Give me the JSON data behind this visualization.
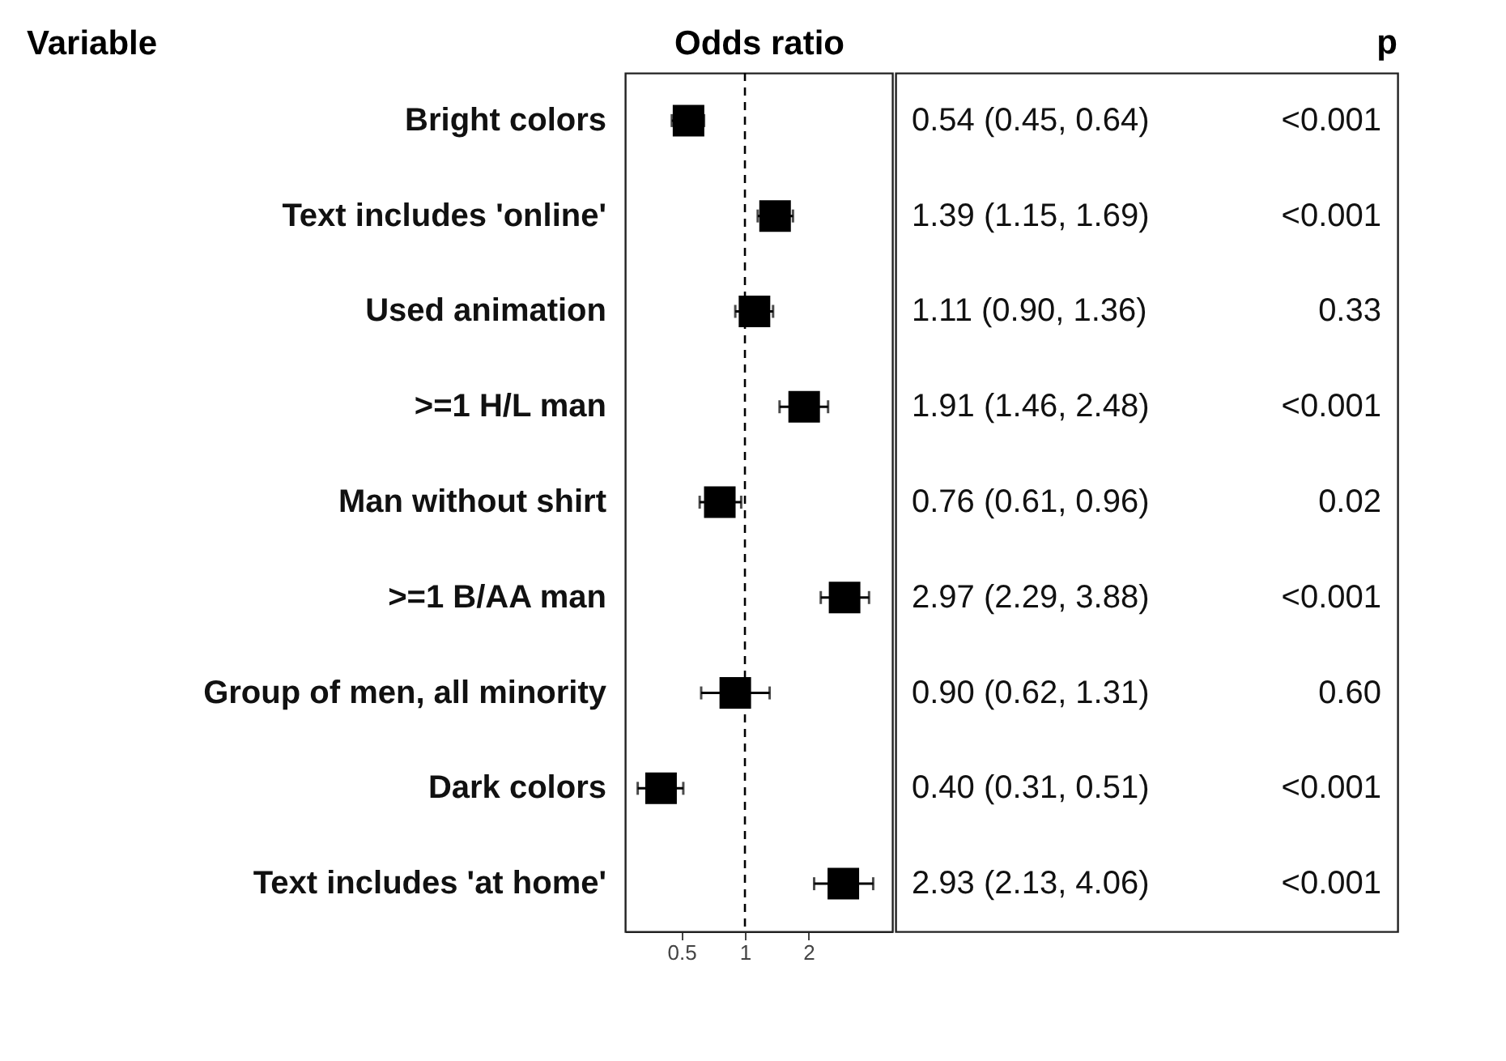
{
  "chart_data": {
    "type": "scatter",
    "orientation": "horizontal",
    "xlabel": "Odds ratio",
    "ylabel": "Variable",
    "categories": [
      "Bright colors",
      "Text includes 'online'",
      "Used animation",
      ">=1 H/L man",
      "Man without shirt",
      ">=1 B/AA man",
      "Group of men, all minority",
      "Dark colors",
      "Text includes 'at home'"
    ],
    "values": [
      0.54,
      1.39,
      1.11,
      1.91,
      0.76,
      2.97,
      0.9,
      0.4,
      2.93
    ],
    "errors": [
      [
        0.45,
        0.64
      ],
      [
        1.15,
        1.69
      ],
      [
        0.9,
        1.36
      ],
      [
        1.46,
        2.48
      ],
      [
        0.61,
        0.96
      ],
      [
        2.29,
        3.88
      ],
      [
        0.62,
        1.31
      ],
      [
        0.31,
        0.51
      ],
      [
        2.13,
        4.06
      ]
    ],
    "value_labels": [
      "0.54 (0.45, 0.64)",
      "1.39 (1.15, 1.69)",
      "1.11 (0.90, 1.36)",
      "1.91 (1.46, 2.48)",
      "0.76 (0.61, 0.96)",
      "2.97 (2.29, 3.88)",
      "0.90 (0.62, 1.31)",
      "0.40 (0.31, 0.51)",
      "2.93 (2.13, 4.06)"
    ],
    "annotations": [
      "p",
      "<0.001",
      "<0.001",
      "0.33",
      "<0.001",
      "0.02",
      "<0.001",
      "0.60",
      "<0.001",
      "<0.001"
    ],
    "color": "#000000",
    "marker": "square",
    "log": "x",
    "xlim": [
      0.27,
      5.0
    ],
    "xticks": [
      0.5,
      1,
      2
    ],
    "ref_lines": [
      {
        "axis": "x",
        "value": 1,
        "line_style": "dashed"
      }
    ]
  }
}
